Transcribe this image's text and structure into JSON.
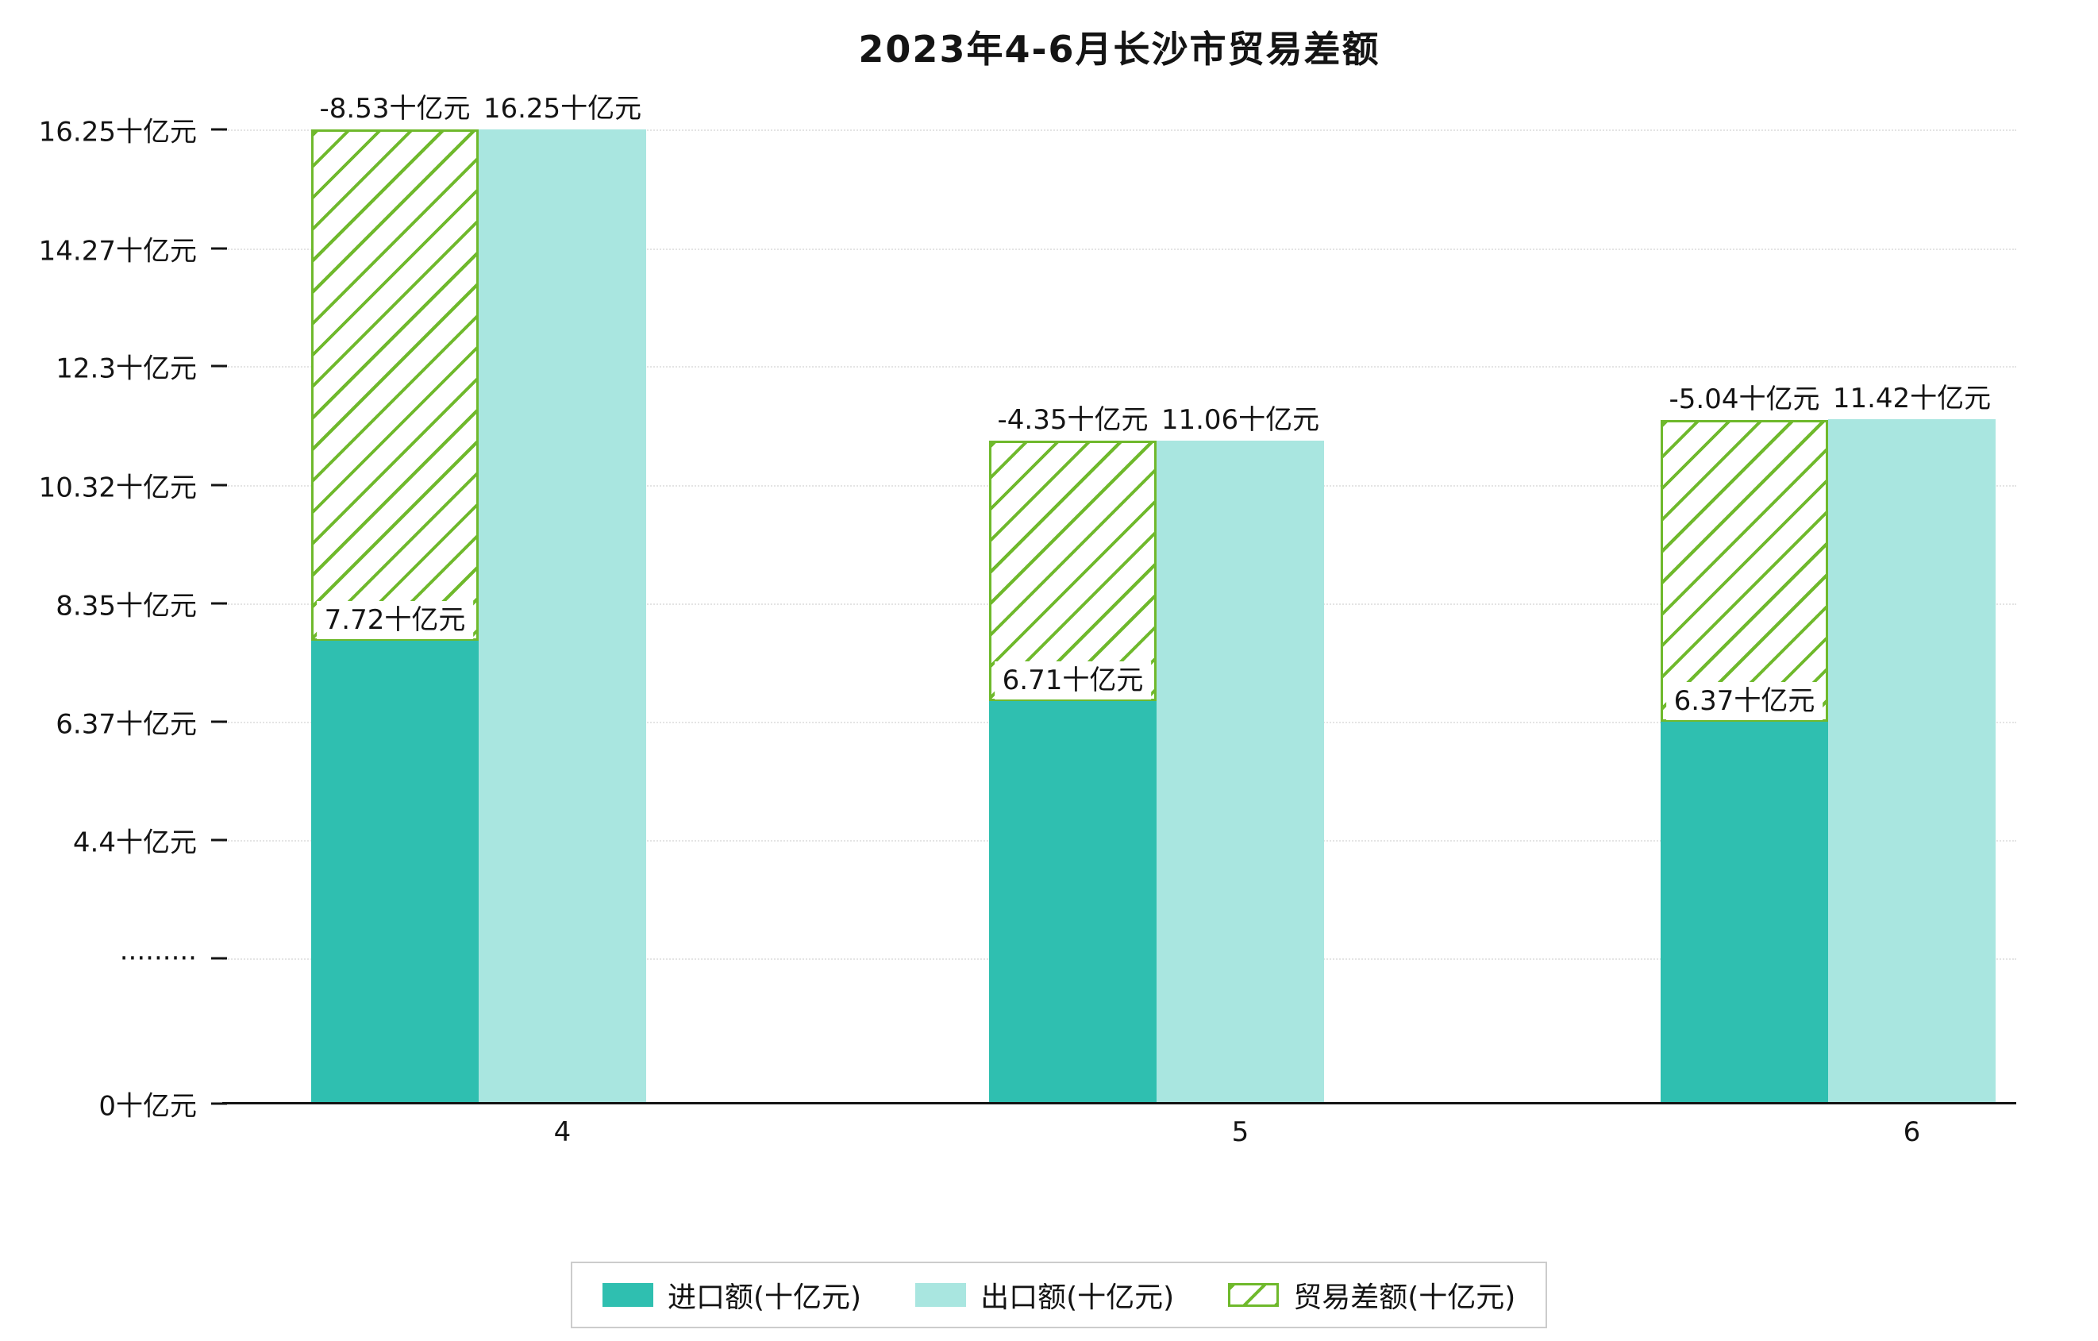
{
  "title": "2023年4-6月长沙市贸易差额",
  "y_axis": {
    "ticks": [
      "0十亿元",
      "·········",
      "4.4十亿元",
      "6.37十亿元",
      "8.35十亿元",
      "10.32十亿元",
      "12.3十亿元",
      "14.27十亿元",
      "16.25十亿元"
    ]
  },
  "x_axis": {
    "ticks": [
      "4",
      "5",
      "6"
    ]
  },
  "legend": [
    {
      "key": "import",
      "label": "进口额(十亿元)"
    },
    {
      "key": "export",
      "label": "出口额(十亿元)"
    },
    {
      "key": "balance",
      "label": "贸易差额(十亿元)"
    }
  ],
  "colors": {
    "import": "#2fbfb0",
    "export": "#a9e6e0",
    "balance": "#6fb92c"
  },
  "chart_data": {
    "type": "bar",
    "title": "2023年4-6月长沙市贸易差额",
    "categories": [
      "4",
      "5",
      "6"
    ],
    "series": [
      {
        "name": "进口额(十亿元)",
        "values": [
          7.72,
          6.71,
          6.37
        ]
      },
      {
        "name": "出口额(十亿元)",
        "values": [
          16.25,
          11.06,
          11.42
        ]
      },
      {
        "name": "贸易差额(十亿元)",
        "values": [
          -8.53,
          -4.35,
          -5.04
        ]
      }
    ],
    "labels": {
      "import": [
        "7.72十亿元",
        "6.71十亿元",
        "6.37十亿元"
      ],
      "export": [
        "16.25十亿元",
        "11.06十亿元",
        "11.42十亿元"
      ],
      "balance": [
        "-8.53十亿元",
        "-4.35十亿元",
        "-5.04十亿元"
      ]
    },
    "y_tick_values": [
      0,
      2.42,
      4.4,
      6.37,
      8.35,
      10.32,
      12.3,
      14.27,
      16.25
    ],
    "ylim": [
      0,
      16.8
    ],
    "xlabel": "",
    "ylabel": "",
    "unit": "十亿元",
    "grid": "dotted-horizontal",
    "legend_position": "bottom"
  }
}
